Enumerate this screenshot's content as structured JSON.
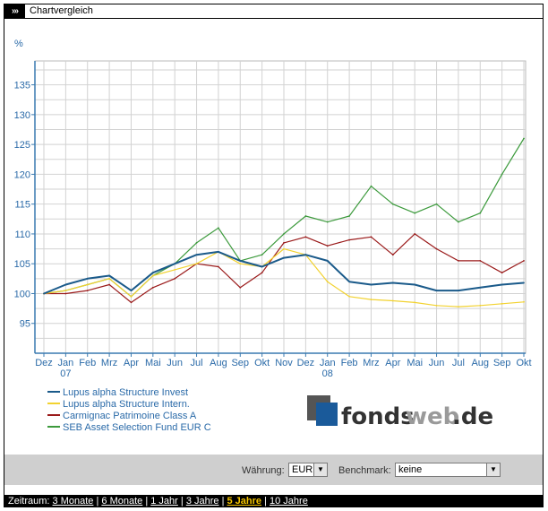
{
  "header": {
    "icon_text": "›››",
    "title": "Chartvergleich"
  },
  "chart_data": {
    "type": "line",
    "ylabel": "%",
    "ylim": [
      90,
      139
    ],
    "grid": true,
    "y_ticks": [
      "95",
      "100",
      "105",
      "110",
      "115",
      "120",
      "125",
      "130",
      "135"
    ],
    "x_ticks": [
      "Dez",
      "Jan",
      "Feb",
      "Mrz",
      "Apr",
      "Mai",
      "Jun",
      "Jul",
      "Aug",
      "Sep",
      "Okt",
      "Nov",
      "Dez",
      "Jan",
      "Feb",
      "Mrz",
      "Apr",
      "Mai",
      "Jun",
      "Jul",
      "Aug",
      "Sep",
      "Okt"
    ],
    "year_labels": [
      {
        "after_tick": 1,
        "label": "07"
      },
      {
        "after_tick": 13,
        "label": "08"
      }
    ],
    "series": [
      {
        "name": "Lupus alpha Structure Invest",
        "color": "#1a5a8a",
        "values": [
          100,
          101.5,
          102.5,
          103,
          100.5,
          103.5,
          105,
          106.5,
          107,
          105.5,
          104.5,
          106,
          106.5,
          105.5,
          102,
          101.5,
          101.8,
          101.5,
          100.5,
          100.5,
          101,
          101.5,
          101.8
        ]
      },
      {
        "name": "Lupus alpha Structure Intern.",
        "color": "#f2d230",
        "values": [
          100,
          100.5,
          101.5,
          102.5,
          99.5,
          103,
          104,
          105,
          107,
          105,
          104.5,
          107.5,
          106.5,
          102,
          99.5,
          99,
          98.8,
          98.5,
          98,
          97.8,
          98,
          98.3,
          98.6
        ]
      },
      {
        "name": "Carmignac Patrimoine Class A",
        "color": "#9a1a1a",
        "values": [
          100,
          100,
          100.5,
          101.5,
          98.5,
          101,
          102.5,
          105,
          104.5,
          101,
          103.5,
          108.5,
          109.5,
          108,
          109,
          109.5,
          106.5,
          110,
          107.5,
          105.5,
          105.5,
          103.5,
          105.5
        ]
      },
      {
        "name": "SEB Asset Selection Fund EUR C",
        "color": "#3c9a3c",
        "values": [
          100,
          100.5,
          101.5,
          102.5,
          99.5,
          103,
          105,
          108.5,
          111,
          105.5,
          106.5,
          110,
          113,
          112,
          113,
          118,
          115,
          113.5,
          115,
          112,
          113.5,
          120,
          126
        ]
      }
    ]
  },
  "logo": {
    "part1": "fonds",
    "part2": "web",
    "part3": ".de"
  },
  "controls": {
    "waehrung_label": "Währung:",
    "waehrung_value": "EUR",
    "benchmark_label": "Benchmark:",
    "benchmark_value": "keine"
  },
  "zeitraum": {
    "label": "Zeitraum:",
    "links": [
      {
        "label": "3 Monate",
        "active": false
      },
      {
        "label": "6 Monate",
        "active": false
      },
      {
        "label": "1 Jahr",
        "active": false
      },
      {
        "label": "3 Jahre",
        "active": false
      },
      {
        "label": "5 Jahre",
        "active": true
      },
      {
        "label": "10 Jahre",
        "active": false
      }
    ]
  }
}
